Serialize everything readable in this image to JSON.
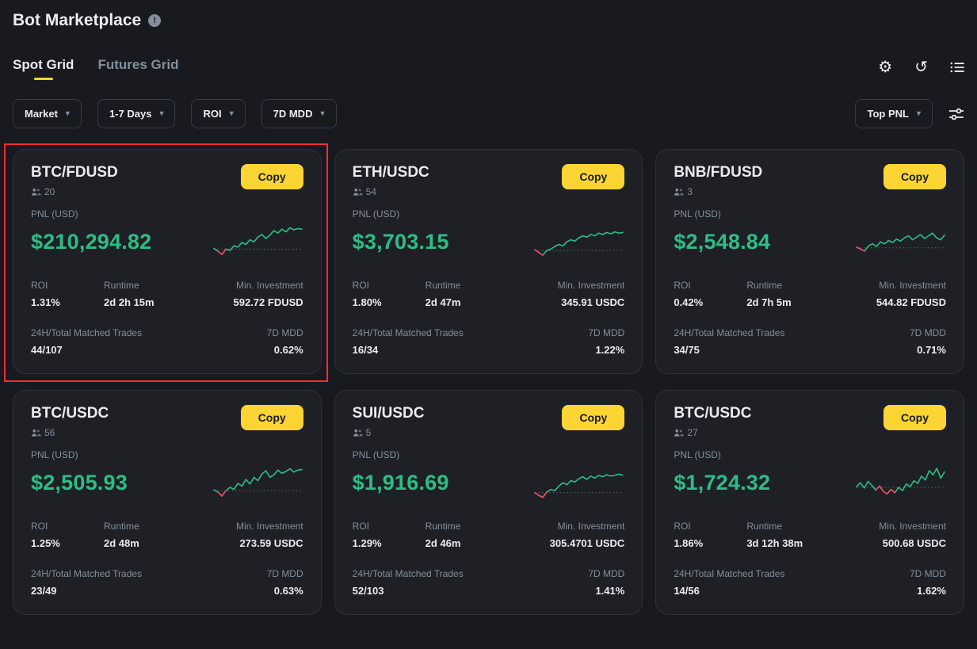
{
  "colors": {
    "green": "#2ebd85",
    "red": "#f6465d",
    "yellow": "#fcd535",
    "spark_baseline": "#5e6673"
  },
  "icons": {
    "chevron_down": "▾",
    "gear": "⚙",
    "refresh": "↺",
    "info": "!"
  },
  "header": {
    "title": "Bot Marketplace"
  },
  "tabs": [
    {
      "label": "Spot Grid",
      "active": true
    },
    {
      "label": "Futures Grid",
      "active": false
    }
  ],
  "filters": [
    {
      "label": "Market"
    },
    {
      "label": "1-7 Days"
    },
    {
      "label": "ROI"
    },
    {
      "label": "7D MDD"
    }
  ],
  "sort": {
    "label": "Top PNL"
  },
  "card_labels": {
    "pnl": "PNL (USD)",
    "roi": "ROI",
    "runtime": "Runtime",
    "min_investment": "Min. Investment",
    "trades": "24H/Total Matched Trades",
    "mdd": "7D MDD",
    "copy_button": "Copy"
  },
  "cards": [
    {
      "pair": "BTC/FDUSD",
      "copiers": "20",
      "pnl": "$210,294.82",
      "roi": "1.31%",
      "runtime": "2d 2h 15m",
      "min_investment": "592.72 FDUSD",
      "trades": "44/107",
      "mdd": "0.62%",
      "highlighted": true,
      "spark": {
        "values": [
          32,
          24,
          14,
          30,
          26,
          40,
          36,
          50,
          44,
          58,
          52,
          66,
          74,
          62,
          72,
          86,
          78,
          90,
          82,
          94,
          88,
          92,
          90
        ],
        "baseline": 30,
        "red": [
          1,
          3
        ]
      }
    },
    {
      "pair": "ETH/USDC",
      "copiers": "54",
      "pnl": "$3,703.15",
      "roi": "1.80%",
      "runtime": "2d 47m",
      "min_investment": "345.91 USDC",
      "trades": "16/34",
      "mdd": "1.22%",
      "highlighted": false,
      "spark": {
        "values": [
          28,
          20,
          12,
          26,
          30,
          38,
          44,
          40,
          52,
          58,
          54,
          64,
          70,
          66,
          74,
          70,
          78,
          74,
          80,
          76,
          82,
          78,
          80
        ],
        "baseline": 26,
        "red": [
          0,
          2
        ]
      }
    },
    {
      "pair": "BNB/FDUSD",
      "copiers": "3",
      "pnl": "$2,548.84",
      "roi": "0.42%",
      "runtime": "2d 7h 5m",
      "min_investment": "544.82 FDUSD",
      "trades": "34/75",
      "mdd": "0.71%",
      "highlighted": false,
      "spark": {
        "values": [
          36,
          30,
          24,
          40,
          46,
          38,
          52,
          46,
          56,
          50,
          60,
          54,
          64,
          70,
          58,
          66,
          74,
          62,
          70,
          78,
          64,
          58,
          72
        ],
        "baseline": 34,
        "red": [
          0,
          2
        ]
      }
    },
    {
      "pair": "BTC/USDC",
      "copiers": "56",
      "pnl": "$2,505.93",
      "roi": "1.25%",
      "runtime": "2d 48m",
      "min_investment": "273.59 USDC",
      "trades": "23/49",
      "mdd": "0.63%",
      "highlighted": false,
      "spark": {
        "values": [
          30,
          24,
          12,
          28,
          38,
          32,
          50,
          42,
          62,
          48,
          68,
          58,
          78,
          88,
          68,
          76,
          90,
          80,
          86,
          94,
          84,
          90,
          92
        ],
        "baseline": 28,
        "red": [
          1,
          3
        ]
      }
    },
    {
      "pair": "SUI/USDC",
      "copiers": "5",
      "pnl": "$1,916.69",
      "roi": "1.29%",
      "runtime": "2d 46m",
      "min_investment": "305.4701 USDC",
      "trades": "52/103",
      "mdd": "1.41%",
      "highlighted": false,
      "spark": {
        "values": [
          22,
          14,
          8,
          24,
          32,
          28,
          42,
          52,
          46,
          58,
          54,
          64,
          70,
          62,
          72,
          66,
          74,
          70,
          76,
          72,
          74,
          78,
          74
        ],
        "baseline": 22,
        "red": [
          0,
          3
        ]
      }
    },
    {
      "pair": "BTC/USDC",
      "copiers": "27",
      "pnl": "$1,724.32",
      "roi": "1.86%",
      "runtime": "3d 12h 38m",
      "min_investment": "500.68 USDC",
      "trades": "14/56",
      "mdd": "1.62%",
      "highlighted": false,
      "spark": {
        "values": [
          40,
          52,
          36,
          56,
          44,
          30,
          42,
          26,
          18,
          32,
          22,
          38,
          28,
          48,
          40,
          58,
          50,
          72,
          60,
          88,
          76,
          95,
          66,
          84
        ],
        "baseline": 38,
        "red": [
          5,
          10
        ]
      }
    }
  ]
}
